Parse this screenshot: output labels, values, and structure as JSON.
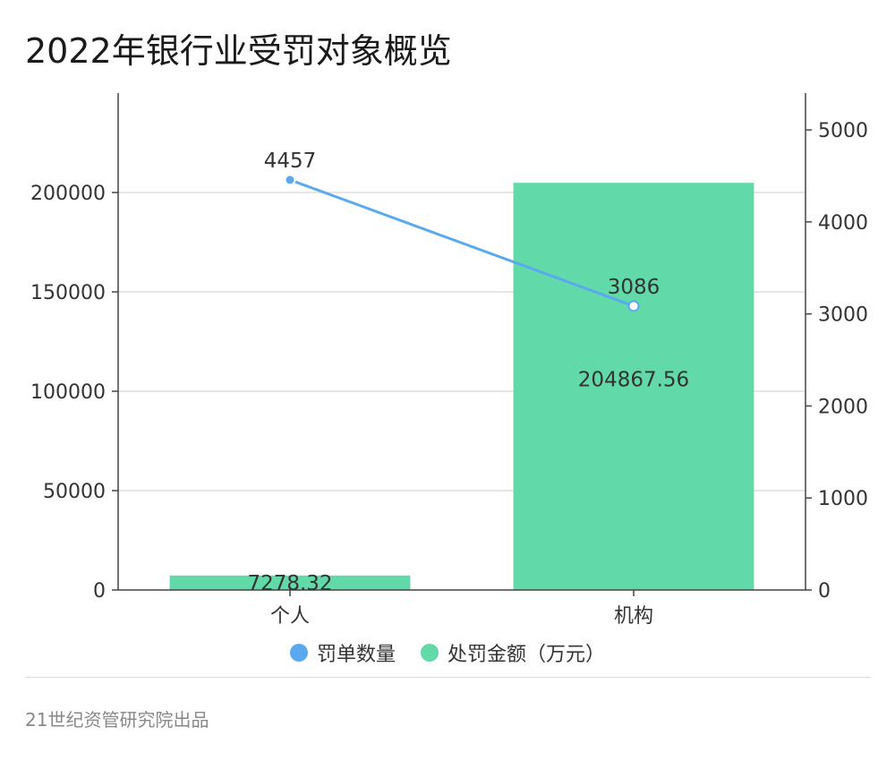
{
  "title": "2022年银行业受罚对象概览",
  "footer": "21世纪资管研究院出品",
  "colors": {
    "bar": "#62d9a8",
    "line": "#5aa9ef",
    "grid": "#dddddd",
    "axis": "#444444"
  },
  "chart_data": {
    "type": "bar+line",
    "categories": [
      "个人",
      "机构"
    ],
    "series": [
      {
        "name": "处罚金额（万元）",
        "type": "bar",
        "axis": "left",
        "values": [
          7278.32,
          204867.56
        ]
      },
      {
        "name": "罚单数量",
        "type": "line",
        "axis": "right",
        "values": [
          4457,
          3086
        ]
      }
    ],
    "left_axis": {
      "min": 0,
      "max": 250000,
      "ticks": [
        0,
        50000,
        100000,
        150000,
        200000
      ]
    },
    "right_axis": {
      "min": 0,
      "max": 5400,
      "ticks": [
        0,
        1000,
        2000,
        3000,
        4000,
        5000
      ]
    },
    "grid": true,
    "legend_position": "bottom"
  }
}
